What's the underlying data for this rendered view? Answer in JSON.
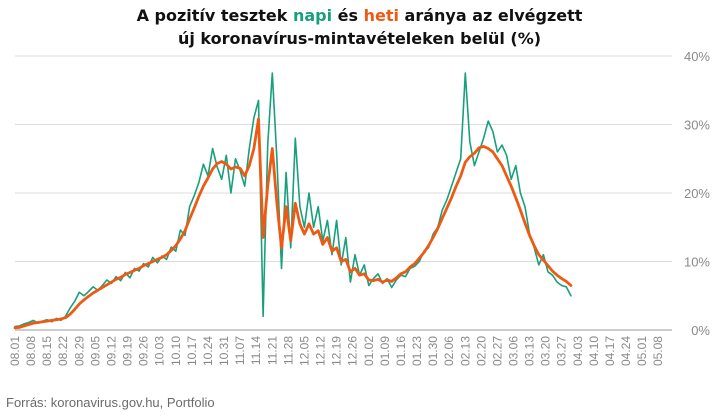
{
  "title": {
    "line1_pre": "A pozitív tesztek ",
    "napi_word": "napi",
    "mid": " és ",
    "heti_word": "heti",
    "line1_post": " aránya az elvégzett",
    "line2": "új koronavírus-mintavételeken belül (%)"
  },
  "source": "Forrás: koronavirus.gov.hu, Portfolio",
  "colors": {
    "napi": "#18a07e",
    "heti": "#ee5a13",
    "grid": "#dcdcdc",
    "tick": "#8a8a8a"
  },
  "chart_data": {
    "type": "line",
    "x_start": "08.01",
    "x_end": "05.13",
    "x_tick_labels": [
      "08.01",
      "08.08",
      "08.15",
      "08.22",
      "08.29",
      "09.05",
      "09.12",
      "09.19",
      "09.26",
      "10.03",
      "10.10",
      "10.17",
      "10.24",
      "10.31",
      "11.07",
      "11.14",
      "11.21",
      "11.28",
      "12.05",
      "12.12",
      "12.19",
      "12.26",
      "01.02",
      "01.09",
      "01.16",
      "01.23",
      "01.30",
      "02.06",
      "02.13",
      "02.20",
      "02.27",
      "03.06",
      "03.13",
      "03.20",
      "03.27",
      "04.03",
      "04.10",
      "04.17",
      "04.24",
      "05.01",
      "05.08"
    ],
    "y_ticks": [
      0,
      10,
      20,
      30,
      40
    ],
    "y_tick_labels": [
      "0%",
      "10%",
      "20%",
      "30%",
      "40%"
    ],
    "ylim": [
      0,
      40
    ],
    "y_axis_side": "right",
    "grid": true,
    "series": [
      {
        "name": "napi",
        "interval_days": 2,
        "values": [
          0.5,
          0.6,
          0.9,
          1.1,
          1.4,
          1.0,
          1.3,
          1.5,
          1.2,
          1.7,
          1.4,
          2.0,
          3.2,
          4.2,
          5.5,
          5.0,
          5.6,
          6.3,
          5.8,
          6.5,
          7.3,
          6.8,
          7.8,
          7.2,
          8.4,
          7.6,
          9.0,
          8.6,
          9.7,
          9.2,
          10.6,
          9.8,
          10.8,
          10.3,
          12.1,
          11.5,
          14.6,
          13.8,
          18.0,
          19.6,
          21.5,
          24.2,
          22.5,
          26.5,
          23.8,
          22.0,
          25.5,
          20.0,
          25.0,
          23.3,
          21.0,
          26.5,
          31.0,
          33.5,
          2.0,
          27.0,
          37.5,
          25.0,
          9.0,
          23.0,
          12.0,
          28.0,
          18.0,
          15.0,
          20.0,
          15.0,
          18.0,
          13.0,
          16.0,
          11.0,
          16.0,
          9.5,
          13.5,
          7.0,
          11.0,
          8.0,
          9.5,
          6.5,
          7.5,
          8.2,
          6.8,
          7.5,
          6.2,
          7.3,
          8.0,
          7.8,
          9.0,
          9.3,
          10.0,
          11.5,
          12.0,
          14.0,
          15.0,
          17.5,
          19.0,
          21.0,
          23.0,
          25.0,
          37.5,
          27.5,
          24.0,
          26.0,
          28.0,
          30.5,
          29.0,
          26.0,
          27.0,
          25.5,
          22.0,
          24.0,
          20.0,
          18.0,
          14.0,
          12.0,
          9.5,
          11.0,
          8.5,
          8.0,
          7.0,
          6.5,
          6.3,
          5.0
        ]
      },
      {
        "name": "heti",
        "interval_days": 2,
        "values": [
          0.3,
          0.4,
          0.6,
          0.8,
          1.0,
          1.1,
          1.2,
          1.3,
          1.4,
          1.5,
          1.6,
          1.8,
          2.3,
          3.0,
          3.8,
          4.4,
          4.9,
          5.4,
          5.8,
          6.2,
          6.6,
          7.0,
          7.4,
          7.7,
          8.1,
          8.4,
          8.7,
          9.0,
          9.4,
          9.7,
          10.0,
          10.3,
          10.6,
          11.0,
          11.6,
          12.3,
          13.3,
          14.5,
          16.2,
          17.8,
          19.5,
          21.0,
          22.2,
          23.5,
          24.3,
          24.6,
          24.2,
          23.5,
          23.8,
          23.6,
          22.5,
          24.0,
          26.5,
          30.8,
          13.5,
          21.0,
          26.5,
          18.5,
          12.0,
          18.0,
          13.0,
          18.5,
          15.5,
          14.0,
          15.5,
          14.0,
          14.5,
          12.5,
          13.5,
          11.5,
          12.0,
          10.0,
          10.3,
          8.5,
          9.0,
          8.0,
          8.2,
          7.3,
          7.2,
          7.4,
          7.0,
          7.3,
          7.1,
          7.6,
          8.2,
          8.5,
          9.2,
          9.7,
          10.5,
          11.3,
          12.3,
          13.5,
          14.8,
          16.3,
          17.8,
          19.3,
          21.0,
          22.5,
          24.5,
          25.3,
          25.8,
          26.6,
          26.8,
          26.5,
          26.0,
          25.0,
          24.0,
          22.5,
          21.0,
          19.3,
          17.5,
          15.6,
          13.8,
          12.3,
          11.0,
          10.2,
          9.4,
          8.6,
          8.0,
          7.5,
          7.1,
          6.5
        ]
      }
    ]
  }
}
